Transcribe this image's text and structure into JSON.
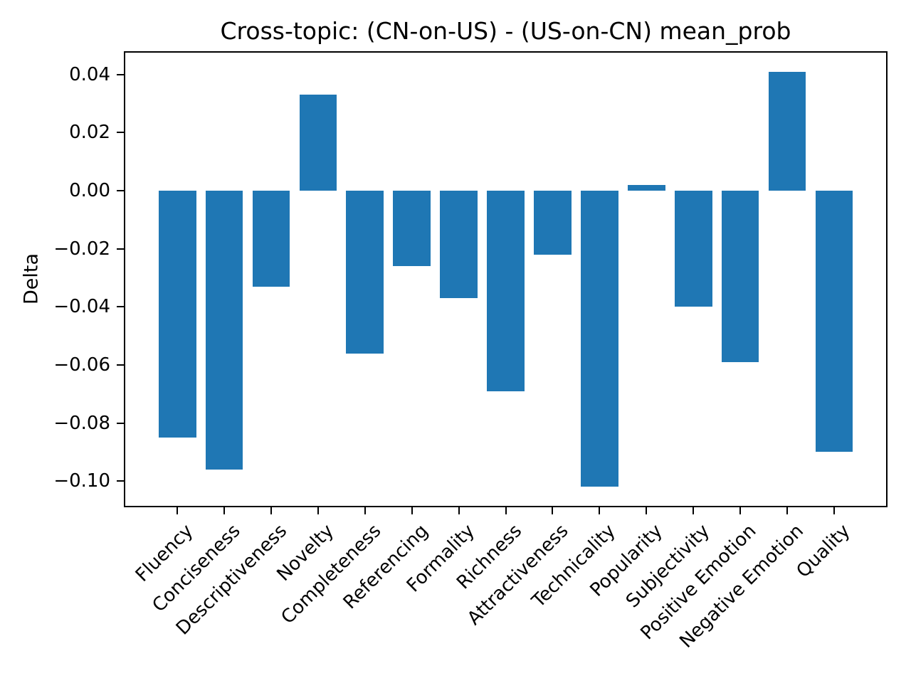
{
  "chart_data": {
    "type": "bar",
    "title": "Cross-topic: (CN-on-US) - (US-on-CN) mean_prob",
    "xlabel": "",
    "ylabel": "Delta",
    "categories": [
      "Fluency",
      "Conciseness",
      "Descriptiveness",
      "Novelty",
      "Completeness",
      "Referencing",
      "Formality",
      "Richness",
      "Attractiveness",
      "Technicality",
      "Popularity",
      "Subjectivity",
      "Positive Emotion",
      "Negative Emotion",
      "Quality"
    ],
    "values": [
      -0.085,
      -0.096,
      -0.033,
      0.033,
      -0.056,
      -0.026,
      -0.037,
      -0.069,
      -0.022,
      -0.102,
      0.002,
      -0.04,
      -0.059,
      0.041,
      -0.09
    ],
    "yticks": [
      0.04,
      0.02,
      0.0,
      -0.02,
      -0.04,
      -0.06,
      -0.08,
      -0.1
    ],
    "ytick_labels": [
      "0.04",
      "0.02",
      "0.00",
      "−0.02",
      "−0.04",
      "−0.06",
      "−0.08",
      "−0.10"
    ],
    "ylim": [
      -0.109,
      0.048
    ],
    "bar_color": "#1f77b4",
    "axis_color": "#000000",
    "grid": false,
    "legend": null,
    "xtick_rotation": 45
  }
}
